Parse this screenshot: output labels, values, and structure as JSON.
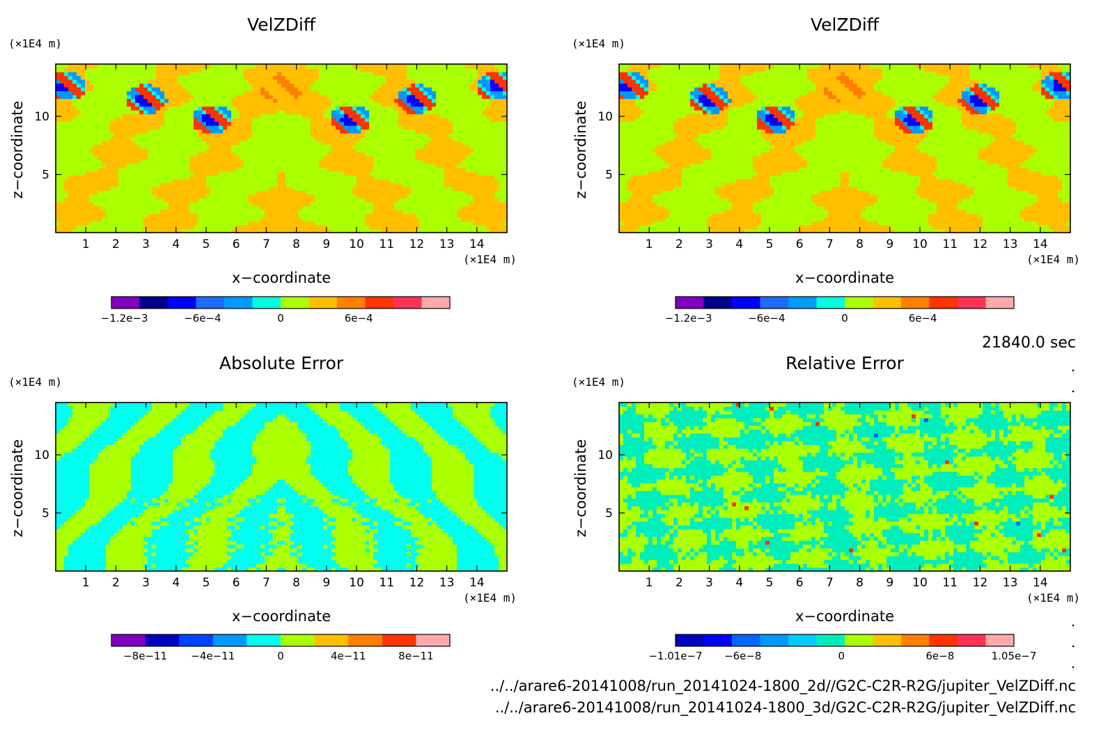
{
  "chart_data": [
    {
      "type": "heatmap",
      "title": "VelZDiff",
      "xlabel": "x−coordinate",
      "ylabel": "z−coordinate",
      "x_unit": "(×1E4 m)",
      "y_unit": "(×1E4 m)",
      "xlim": [
        0,
        15
      ],
      "ylim": [
        0,
        14.5
      ],
      "x_ticks": [
        "1",
        "2",
        "3",
        "4",
        "5",
        "6",
        "7",
        "8",
        "9",
        "10",
        "11",
        "12",
        "13",
        "14"
      ],
      "y_ticks": [
        "5",
        "10"
      ],
      "colorbar": {
        "ticks": [
          "−1.2e−3",
          "−6e−4",
          "0",
          "6e−4"
        ],
        "colors": [
          "#7f00bf",
          "#00008b",
          "#0000ff",
          "#1e6cff",
          "#0099ff",
          "#00ffdd",
          "#aaff00",
          "#ffbf00",
          "#ff7f00",
          "#ff3300",
          "#ff3355",
          "#ffaaaa"
        ],
        "range": [
          -0.0013,
          0.0013
        ]
      }
    },
    {
      "type": "heatmap",
      "title": "VelZDiff",
      "xlabel": "x−coordinate",
      "ylabel": "z−coordinate",
      "x_unit": "(×1E4 m)",
      "y_unit": "(×1E4 m)",
      "xlim": [
        0,
        15
      ],
      "ylim": [
        0,
        14.5
      ],
      "x_ticks": [
        "1",
        "2",
        "3",
        "4",
        "5",
        "6",
        "7",
        "8",
        "9",
        "10",
        "11",
        "12",
        "13",
        "14"
      ],
      "y_ticks": [
        "5",
        "10"
      ],
      "colorbar": {
        "ticks": [
          "−1.2e−3",
          "−6e−4",
          "0",
          "6e−4"
        ],
        "colors": [
          "#7f00bf",
          "#00008b",
          "#0000ff",
          "#1e6cff",
          "#0099ff",
          "#00ffdd",
          "#aaff00",
          "#ffbf00",
          "#ff7f00",
          "#ff3300",
          "#ff3355",
          "#ffaaaa"
        ],
        "range": [
          -0.0013,
          0.0013
        ]
      }
    },
    {
      "type": "heatmap",
      "title": "Absolute Error",
      "xlabel": "x−coordinate",
      "ylabel": "z−coordinate",
      "x_unit": "(×1E4 m)",
      "y_unit": "(×1E4 m)",
      "xlim": [
        0,
        15
      ],
      "ylim": [
        0,
        14.5
      ],
      "x_ticks": [
        "1",
        "2",
        "3",
        "4",
        "5",
        "6",
        "7",
        "8",
        "9",
        "10",
        "11",
        "12",
        "13",
        "14"
      ],
      "y_ticks": [
        "5",
        "10"
      ],
      "colorbar": {
        "ticks": [
          "−8e−11",
          "−4e−11",
          "0",
          "4e−11",
          "8e−11"
        ],
        "colors": [
          "#7f00bf",
          "#0000bf",
          "#0044ff",
          "#0099ff",
          "#00ffee",
          "#aaff00",
          "#ffbf00",
          "#ff7f00",
          "#ff3300",
          "#ffaaaa"
        ],
        "range": [
          -1e-10,
          1e-10
        ]
      }
    },
    {
      "type": "heatmap",
      "title": "Relative Error",
      "xlabel": "x−coordinate",
      "ylabel": "z−coordinate",
      "x_unit": "(×1E4 m)",
      "y_unit": "(×1E4 m)",
      "xlim": [
        0,
        15
      ],
      "ylim": [
        0,
        14.5
      ],
      "x_ticks": [
        "1",
        "2",
        "3",
        "4",
        "5",
        "6",
        "7",
        "8",
        "9",
        "10",
        "11",
        "12",
        "13",
        "14"
      ],
      "y_ticks": [
        "5",
        "10"
      ],
      "colorbar": {
        "ticks": [
          "−1.01e−7",
          "−6e−8",
          "0",
          "6e−8",
          "1.05e−7"
        ],
        "colors": [
          "#0000bf",
          "#0000ff",
          "#0066ff",
          "#0099ff",
          "#00ccff",
          "#00eebb",
          "#aaff00",
          "#ffbf00",
          "#ff7f00",
          "#ff3300",
          "#ff3355",
          "#ffaaaa"
        ],
        "range": [
          -1.01e-07,
          1.05e-07
        ]
      }
    }
  ],
  "time_label": "21840.0 sec",
  "files": [
    "../../arare6-20141008/run_20141024-1800_2d//G2C-C2R-R2G/jupiter_VelZDiff.nc",
    "../../arare6-20141008/run_20141024-1800_3d/G2C-C2R-R2G/jupiter_VelZDiff.nc"
  ]
}
